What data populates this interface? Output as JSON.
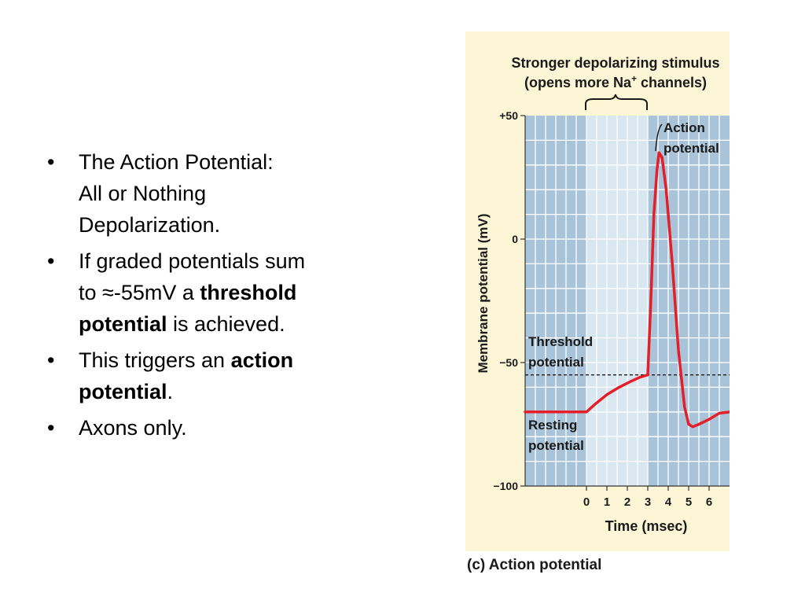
{
  "slide": {
    "bullets": [
      {
        "line1": "The Action Potential:",
        "line2": "All or Nothing",
        "line3": "Depolarization."
      },
      {
        "pre": "If graded potentials sum",
        "mid": "to ≈-55mV a ",
        "bold1": "threshold",
        "bold2": "potential",
        "post": " is achieved."
      },
      {
        "pre": "This triggers an ",
        "bold1": "action",
        "bold2": "potential",
        "post": "."
      },
      {
        "text": "Axons only."
      }
    ],
    "bullet_symbol": "•"
  },
  "figure": {
    "caption": "(c) Action potential"
  },
  "chart_data": {
    "type": "line",
    "title_line1": "Stronger depolarizing stimulus",
    "title_line2_pre": "(opens more Na",
    "title_line2_sup": "+",
    "title_line2_post": " channels)",
    "xlabel": "Time (msec)",
    "ylabel": "Membrane potential (mV)",
    "xlim": [
      -3,
      7
    ],
    "ylim": [
      -100,
      50
    ],
    "x_ticks": [
      0,
      1,
      2,
      3,
      4,
      5,
      6
    ],
    "x_tick_labels": [
      "0",
      "1",
      "2",
      "3",
      "4",
      "5",
      "6"
    ],
    "y_ticks": [
      50,
      0,
      -50,
      -100
    ],
    "y_tick_labels": [
      "+50",
      "0",
      "−50",
      "−100"
    ],
    "grid": true,
    "stimulus_window": [
      0,
      3
    ],
    "threshold_value": -55,
    "series": [
      {
        "x": [
          -3,
          0,
          0.4,
          1,
          1.6,
          2.2,
          2.6,
          3.0,
          3.15,
          3.3,
          3.45,
          3.55,
          3.7,
          3.9,
          4.2,
          4.5,
          4.8,
          5.0,
          5.2,
          5.5,
          6.0,
          6.5,
          7.0
        ],
        "y": [
          -70,
          -70,
          -67,
          -63,
          -60,
          -57.5,
          -56,
          -55,
          -25,
          10,
          28,
          35,
          33,
          20,
          -10,
          -45,
          -68,
          -75,
          -76,
          -75,
          -73,
          -70.5,
          -70
        ]
      }
    ],
    "annotations": {
      "action_potential": [
        "Action",
        "potential"
      ],
      "threshold": [
        "Threshold",
        "potential"
      ],
      "resting": [
        "Resting",
        "potential"
      ]
    },
    "colors": {
      "line": "#e3202a",
      "plot_band_dark": "#a9c4d9",
      "plot_band_light": "#d9e7f1",
      "grid": "#ffffff",
      "figure_bg": "#fdf6d6"
    }
  }
}
